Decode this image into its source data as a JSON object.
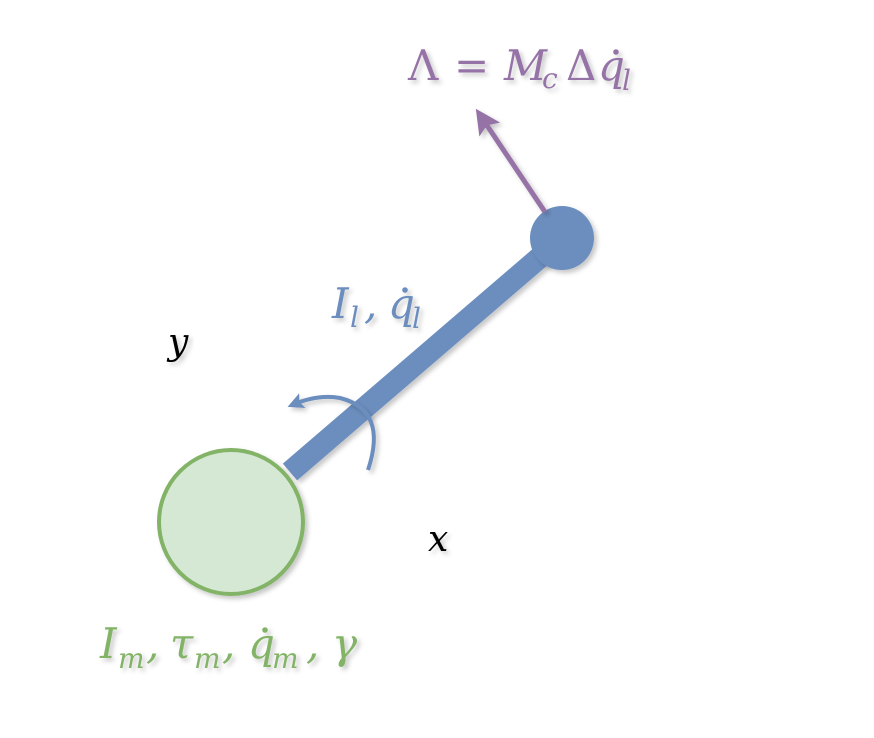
{
  "axes": {
    "x_label": "x",
    "y_label": "y"
  },
  "labels": {
    "force": {
      "lambda": "Λ",
      "equals": "=",
      "M": "M",
      "M_sub": "c",
      "delta": "Δ",
      "q": "q",
      "q_sub": "l"
    },
    "link": {
      "I": "I",
      "I_sub": "l",
      "comma": ",",
      "q": "q",
      "q_sub": "l"
    },
    "motor": {
      "I": "I",
      "I_sub": "m",
      "comma1": ",",
      "tau": "τ",
      "tau_sub": "m",
      "comma2": ",",
      "q": "q",
      "q_sub": "m",
      "comma3": ",",
      "gamma": "γ"
    }
  },
  "colors": {
    "link": "#6c8ebf",
    "motor_fill": "#d5e8d4",
    "motor_stroke": "#82b366",
    "motor_text": "#82b366",
    "force": "#9673a6",
    "axes": "#000000"
  }
}
